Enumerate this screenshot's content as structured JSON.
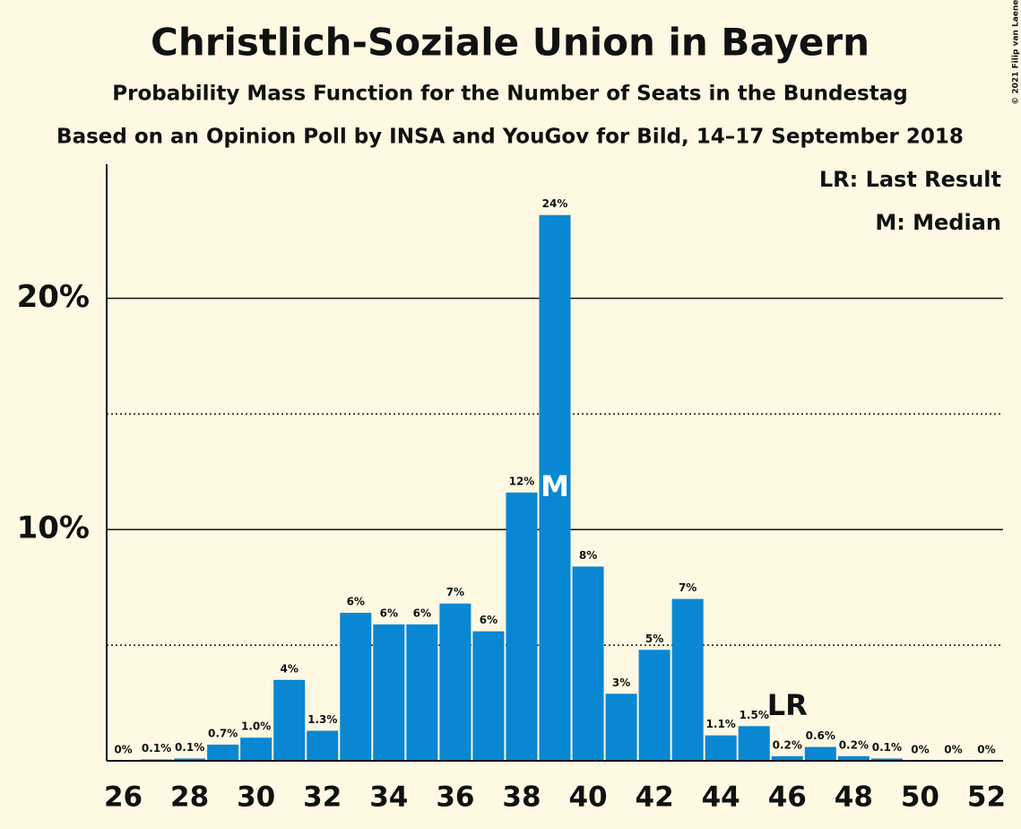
{
  "chart_data": {
    "type": "bar",
    "title": "Christlich-Soziale Union in Bayern",
    "subtitle": "Probability Mass Function for the Number of Seats in the Bundestag",
    "subtitle2": "Based on an Opinion Poll by INSA and YouGov for Bild, 14–17 September 2018",
    "copyright": "© 2021 Filip van Laenen",
    "legend": [
      "LR: Last Result",
      "M: Median"
    ],
    "last_result": {
      "x": 46,
      "label": "LR"
    },
    "median": {
      "x": 39,
      "label": "M"
    },
    "x": [
      26,
      27,
      28,
      29,
      30,
      31,
      32,
      33,
      34,
      35,
      36,
      37,
      38,
      39,
      40,
      41,
      42,
      43,
      44,
      45,
      46,
      47,
      48,
      49,
      50,
      51,
      52
    ],
    "values": [
      0,
      0.06,
      0.1,
      0.7,
      1.0,
      3.5,
      1.3,
      6.4,
      5.9,
      5.9,
      6.8,
      5.6,
      11.6,
      23.6,
      8.4,
      2.9,
      4.8,
      7.0,
      1.1,
      1.5,
      0.2,
      0.6,
      0.2,
      0.1,
      0,
      0,
      0
    ],
    "value_labels": [
      "0%",
      "0.1%",
      "0.1%",
      "0.7%",
      "1.0%",
      "4%",
      "1.3%",
      "6%",
      "6%",
      "6%",
      "7%",
      "6%",
      "12%",
      "24%",
      "8%",
      "3%",
      "5%",
      "7%",
      "1.1%",
      "1.5%",
      "0.2%",
      "0.6%",
      "0.2%",
      "0.1%",
      "0%",
      "0%",
      "0%"
    ],
    "color": "#0a87d2",
    "xlim": [
      25.5,
      52.5
    ],
    "xticks": [
      26,
      28,
      30,
      32,
      34,
      36,
      38,
      40,
      42,
      44,
      46,
      48,
      50,
      52
    ],
    "ylim": [
      0,
      25.8
    ],
    "yticks": [
      {
        "value": 10,
        "label": "10%"
      },
      {
        "value": 20,
        "label": "20%"
      }
    ],
    "minor_yticks": [
      5,
      15
    ],
    "grid": true
  }
}
